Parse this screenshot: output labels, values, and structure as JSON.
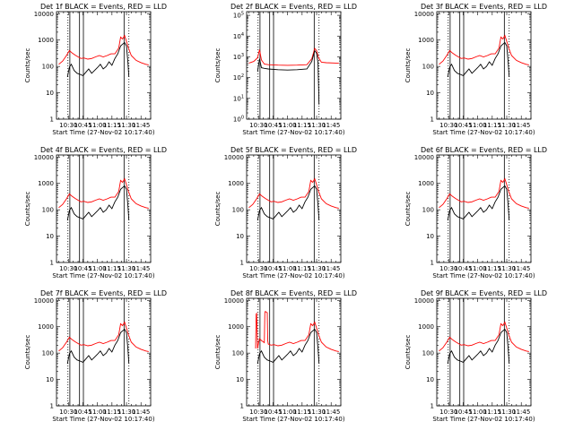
{
  "chart_data": {
    "type": "line",
    "layout": "3x3 grid of panels",
    "xlabel": "Start Time (27-Nov-02 10:17:40)",
    "ylabel": "Counts/sec",
    "y_scale": "log",
    "x_ticks": [
      "10:30",
      "10:45",
      "11:00",
      "11:15",
      "11:30",
      "11:45"
    ],
    "x_tick_minutes": [
      30,
      45,
      60,
      75,
      90,
      105
    ],
    "x_range_minutes": [
      17.7,
      115
    ],
    "series_colors": {
      "events": "#000000",
      "lld": "#ff0000"
    },
    "marker_lines": {
      "solid_minutes": [
        31.5,
        41.5,
        45.5,
        87.5
      ],
      "dotted_minutes": [
        29.5,
        92.5
      ]
    },
    "panels": [
      {
        "title": "Det 1f BLACK = Events, RED = LLD",
        "yticks": [
          "1",
          "10",
          "100",
          "1000",
          "10000"
        ],
        "ylim": [
          1,
          12000
        ],
        "events": {
          "x": [
            29,
            31,
            33,
            36,
            39,
            42,
            45,
            48,
            51,
            54,
            57,
            60,
            63,
            66,
            69,
            72,
            75,
            78,
            81,
            84,
            86,
            88,
            90,
            91.5,
            92.5
          ],
          "y": [
            40,
            95,
            120,
            70,
            55,
            50,
            45,
            60,
            80,
            55,
            70,
            90,
            120,
            80,
            100,
            150,
            110,
            200,
            300,
            600,
            700,
            800,
            600,
            150,
            40
          ]
        },
        "lld": {
          "x": [
            20,
            24,
            28,
            31,
            34,
            37,
            40,
            43,
            46,
            50,
            54,
            58,
            62,
            66,
            70,
            74,
            78,
            82,
            84,
            86,
            88,
            90,
            92,
            95,
            100,
            105,
            110,
            113
          ],
          "y": [
            120,
            160,
            260,
            400,
            320,
            270,
            230,
            200,
            210,
            190,
            200,
            230,
            260,
            230,
            260,
            300,
            300,
            500,
            1300,
            1100,
            1500,
            900,
            500,
            260,
            170,
            140,
            120,
            115
          ]
        }
      },
      {
        "title": "Det 2f BLACK = Events, RED = LLD",
        "yticks": [
          "10^0",
          "10^1",
          "10^2",
          "10^3",
          "10^4",
          "10^5"
        ],
        "ylim": [
          1,
          150000
        ],
        "events": {
          "x": [
            29,
            31,
            33,
            36,
            40,
            50,
            60,
            70,
            80,
            85,
            88,
            90,
            91.5,
            92.5
          ],
          "y": [
            200,
            800,
            300,
            280,
            260,
            240,
            230,
            240,
            260,
            600,
            2000,
            1500,
            500,
            5
          ]
        },
        "lld": {
          "x": [
            20,
            25,
            29,
            31,
            33,
            36,
            40,
            50,
            60,
            70,
            80,
            85,
            88,
            90,
            92,
            95,
            100,
            110,
            113
          ],
          "y": [
            500,
            600,
            900,
            2200,
            700,
            450,
            420,
            400,
            390,
            400,
            420,
            800,
            2500,
            2000,
            900,
            550,
            520,
            500,
            500
          ]
        }
      },
      {
        "title": "Det 3f BLACK = Events, RED = LLD",
        "yticks": [
          "1",
          "10",
          "100",
          "1000",
          "10000"
        ],
        "ylim": [
          1,
          12000
        ],
        "events": {
          "x": [
            29,
            31,
            33,
            36,
            39,
            42,
            45,
            48,
            51,
            54,
            57,
            60,
            63,
            66,
            69,
            72,
            75,
            78,
            81,
            84,
            86,
            88,
            90,
            91.5,
            92.5
          ],
          "y": [
            40,
            95,
            120,
            70,
            55,
            50,
            45,
            60,
            80,
            55,
            70,
            90,
            120,
            80,
            100,
            150,
            110,
            200,
            300,
            600,
            700,
            800,
            600,
            150,
            40
          ]
        },
        "lld": {
          "x": [
            20,
            24,
            28,
            31,
            34,
            37,
            40,
            43,
            46,
            50,
            54,
            58,
            62,
            66,
            70,
            74,
            78,
            82,
            84,
            86,
            88,
            90,
            92,
            95,
            100,
            105,
            110,
            113
          ],
          "y": [
            120,
            160,
            260,
            400,
            320,
            270,
            230,
            200,
            210,
            190,
            200,
            230,
            260,
            230,
            260,
            300,
            300,
            500,
            1300,
            1100,
            1500,
            900,
            500,
            260,
            170,
            140,
            120,
            115
          ]
        }
      },
      {
        "title": "Det 4f BLACK = Events, RED = LLD",
        "yticks": [
          "1",
          "10",
          "100",
          "1000",
          "10000"
        ],
        "ylim": [
          1,
          12000
        ],
        "events": {
          "x": [
            29,
            31,
            33,
            36,
            39,
            42,
            45,
            48,
            51,
            54,
            57,
            60,
            63,
            66,
            69,
            72,
            75,
            78,
            81,
            84,
            86,
            88,
            90,
            91.5,
            92.5
          ],
          "y": [
            40,
            95,
            120,
            70,
            55,
            50,
            45,
            60,
            80,
            55,
            70,
            90,
            120,
            80,
            100,
            150,
            110,
            200,
            300,
            600,
            700,
            800,
            600,
            150,
            40
          ]
        },
        "lld": {
          "x": [
            20,
            24,
            28,
            31,
            34,
            37,
            40,
            43,
            46,
            50,
            54,
            58,
            62,
            66,
            70,
            74,
            78,
            82,
            84,
            86,
            88,
            90,
            92,
            95,
            100,
            105,
            110,
            113
          ],
          "y": [
            120,
            160,
            260,
            400,
            320,
            270,
            230,
            200,
            210,
            190,
            200,
            230,
            260,
            230,
            260,
            300,
            300,
            500,
            1300,
            1100,
            1500,
            900,
            500,
            260,
            170,
            140,
            120,
            115
          ]
        }
      },
      {
        "title": "Det 5f BLACK = Events, RED = LLD",
        "yticks": [
          "1",
          "10",
          "100",
          "1000",
          "10000"
        ],
        "ylim": [
          1,
          12000
        ],
        "events": {
          "x": [
            29,
            31,
            33,
            36,
            39,
            42,
            45,
            48,
            51,
            54,
            57,
            60,
            63,
            66,
            69,
            72,
            75,
            78,
            81,
            84,
            86,
            88,
            90,
            91.5,
            92.5
          ],
          "y": [
            40,
            95,
            120,
            70,
            55,
            50,
            45,
            60,
            80,
            55,
            70,
            90,
            120,
            80,
            100,
            150,
            110,
            200,
            300,
            600,
            700,
            800,
            600,
            150,
            40
          ]
        },
        "lld": {
          "x": [
            20,
            24,
            28,
            31,
            34,
            37,
            40,
            43,
            46,
            50,
            54,
            58,
            62,
            66,
            70,
            74,
            78,
            82,
            84,
            86,
            88,
            90,
            92,
            95,
            100,
            105,
            110,
            113
          ],
          "y": [
            120,
            160,
            260,
            400,
            320,
            270,
            230,
            200,
            210,
            190,
            200,
            230,
            260,
            230,
            260,
            300,
            300,
            500,
            1300,
            1100,
            1500,
            900,
            500,
            260,
            170,
            140,
            120,
            115
          ]
        }
      },
      {
        "title": "Det 6f BLACK = Events, RED = LLD",
        "yticks": [
          "1",
          "10",
          "100",
          "1000",
          "10000"
        ],
        "ylim": [
          1,
          12000
        ],
        "events": {
          "x": [
            29,
            31,
            33,
            36,
            39,
            42,
            45,
            48,
            51,
            54,
            57,
            60,
            63,
            66,
            69,
            72,
            75,
            78,
            81,
            84,
            86,
            88,
            90,
            91.5,
            92.5
          ],
          "y": [
            40,
            95,
            120,
            70,
            55,
            50,
            45,
            60,
            80,
            55,
            70,
            90,
            120,
            80,
            100,
            150,
            110,
            200,
            300,
            600,
            700,
            800,
            600,
            150,
            40
          ]
        },
        "lld": {
          "x": [
            20,
            24,
            28,
            31,
            34,
            37,
            40,
            43,
            46,
            50,
            54,
            58,
            62,
            66,
            70,
            74,
            78,
            82,
            84,
            86,
            88,
            90,
            92,
            95,
            100,
            105,
            110,
            113
          ],
          "y": [
            120,
            160,
            260,
            400,
            320,
            270,
            230,
            200,
            210,
            190,
            200,
            230,
            260,
            230,
            260,
            300,
            300,
            500,
            1300,
            1100,
            1500,
            900,
            500,
            260,
            170,
            140,
            120,
            115
          ]
        }
      },
      {
        "title": "Det 7f BLACK = Events, RED = LLD",
        "yticks": [
          "1",
          "10",
          "100",
          "1000",
          "10000"
        ],
        "ylim": [
          1,
          12000
        ],
        "events": {
          "x": [
            29,
            31,
            33,
            36,
            39,
            42,
            45,
            48,
            51,
            54,
            57,
            60,
            63,
            66,
            69,
            72,
            75,
            78,
            81,
            84,
            86,
            88,
            90,
            91.5,
            92.5
          ],
          "y": [
            40,
            95,
            120,
            70,
            55,
            50,
            45,
            60,
            80,
            55,
            70,
            90,
            120,
            80,
            100,
            150,
            110,
            200,
            300,
            600,
            700,
            800,
            600,
            150,
            40
          ]
        },
        "lld": {
          "x": [
            20,
            24,
            28,
            31,
            34,
            37,
            40,
            43,
            46,
            50,
            54,
            58,
            62,
            66,
            70,
            74,
            78,
            82,
            84,
            86,
            88,
            90,
            92,
            95,
            100,
            105,
            110,
            113
          ],
          "y": [
            120,
            160,
            260,
            400,
            320,
            270,
            230,
            200,
            210,
            190,
            200,
            230,
            260,
            230,
            260,
            300,
            300,
            500,
            1300,
            1100,
            1500,
            900,
            500,
            260,
            170,
            140,
            120,
            115
          ]
        }
      },
      {
        "title": "Det 8f BLACK = Events, RED = LLD",
        "yticks": [
          "1",
          "10",
          "100",
          "1000",
          "10000"
        ],
        "ylim": [
          1,
          12000
        ],
        "events": {
          "x": [
            29,
            31,
            33,
            36,
            39,
            42,
            45,
            48,
            51,
            54,
            57,
            60,
            63,
            66,
            69,
            72,
            75,
            78,
            81,
            84,
            86,
            88,
            90,
            91.5,
            92.5
          ],
          "y": [
            40,
            95,
            120,
            70,
            55,
            50,
            45,
            60,
            80,
            55,
            70,
            90,
            120,
            80,
            100,
            150,
            110,
            200,
            300,
            600,
            700,
            800,
            600,
            150,
            40
          ]
        },
        "lld": {
          "x": [
            27,
            27.5,
            28,
            29,
            30,
            31,
            33,
            36,
            36.5,
            37,
            38,
            39,
            39.5,
            40,
            43,
            46,
            50,
            54,
            58,
            62,
            66,
            70,
            74,
            78,
            82,
            84,
            86,
            88,
            90,
            92,
            95,
            100,
            105,
            110,
            113
          ],
          "y": [
            150,
            3000,
            3200,
            150,
            250,
            350,
            300,
            250,
            3500,
            3800,
            3600,
            3400,
            300,
            220,
            200,
            210,
            190,
            200,
            230,
            260,
            230,
            260,
            300,
            300,
            500,
            1300,
            1100,
            1500,
            900,
            500,
            260,
            170,
            140,
            120,
            115
          ]
        }
      },
      {
        "title": "Det 9f BLACK = Events, RED = LLD",
        "yticks": [
          "1",
          "10",
          "100",
          "1000",
          "10000"
        ],
        "ylim": [
          1,
          12000
        ],
        "events": {
          "x": [
            29,
            31,
            33,
            36,
            39,
            42,
            45,
            48,
            51,
            54,
            57,
            60,
            63,
            66,
            69,
            72,
            75,
            78,
            81,
            84,
            86,
            88,
            90,
            91.5,
            92.5
          ],
          "y": [
            40,
            95,
            120,
            70,
            55,
            50,
            45,
            60,
            80,
            55,
            70,
            90,
            120,
            80,
            100,
            150,
            110,
            200,
            300,
            600,
            700,
            800,
            600,
            150,
            40
          ]
        },
        "lld": {
          "x": [
            20,
            24,
            28,
            31,
            34,
            37,
            40,
            43,
            46,
            50,
            54,
            58,
            62,
            66,
            70,
            74,
            78,
            82,
            84,
            86,
            88,
            90,
            92,
            95,
            100,
            105,
            110,
            113
          ],
          "y": [
            120,
            160,
            260,
            400,
            320,
            270,
            230,
            200,
            210,
            190,
            200,
            230,
            260,
            230,
            260,
            300,
            300,
            500,
            1300,
            1100,
            1500,
            900,
            500,
            260,
            170,
            140,
            120,
            115
          ]
        }
      }
    ]
  }
}
